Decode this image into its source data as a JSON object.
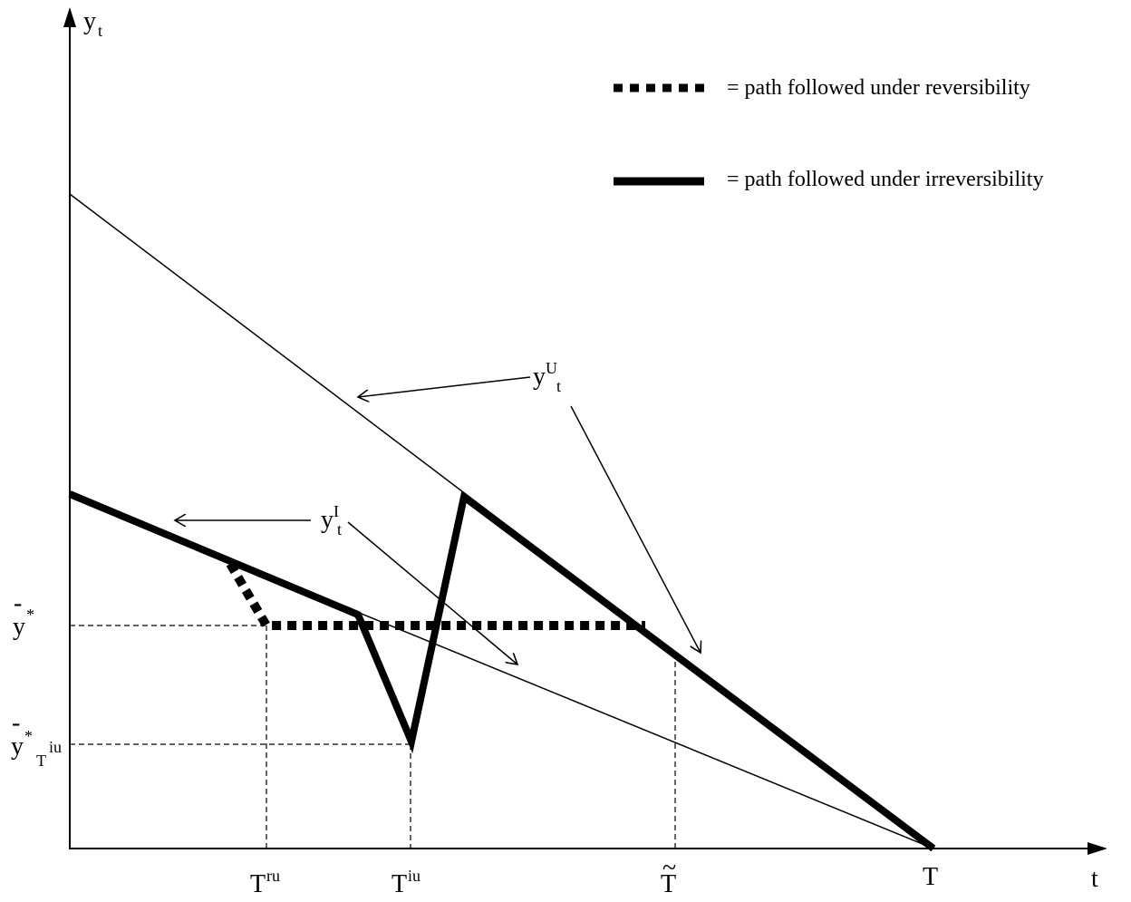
{
  "axes": {
    "y_label": "y",
    "y_label_sub": "t",
    "x_label": "t"
  },
  "x_ticks": {
    "t_ru": {
      "base": "T",
      "sup": "ru"
    },
    "t_iu": {
      "base": "T",
      "sup": "iu"
    },
    "t_tilde": {
      "base": "T",
      "accent": "~"
    },
    "t_end": {
      "base": "T"
    }
  },
  "y_ticks": {
    "y_star": {
      "base": "y",
      "bar": "-",
      "sup": "*"
    },
    "y_star_tiu": {
      "base": "y",
      "bar": "-",
      "sup": "*",
      "sub": "T",
      "sub_sup": "iu"
    }
  },
  "curve_labels": {
    "upper": {
      "base": "y",
      "sup": "U",
      "sub": "t"
    },
    "lower": {
      "base": "y",
      "sup": "I",
      "sub": "t"
    }
  },
  "legend": {
    "reversibility": "=  path followed under reversibility",
    "irreversibility": "=  path followed under irreversibility"
  }
}
